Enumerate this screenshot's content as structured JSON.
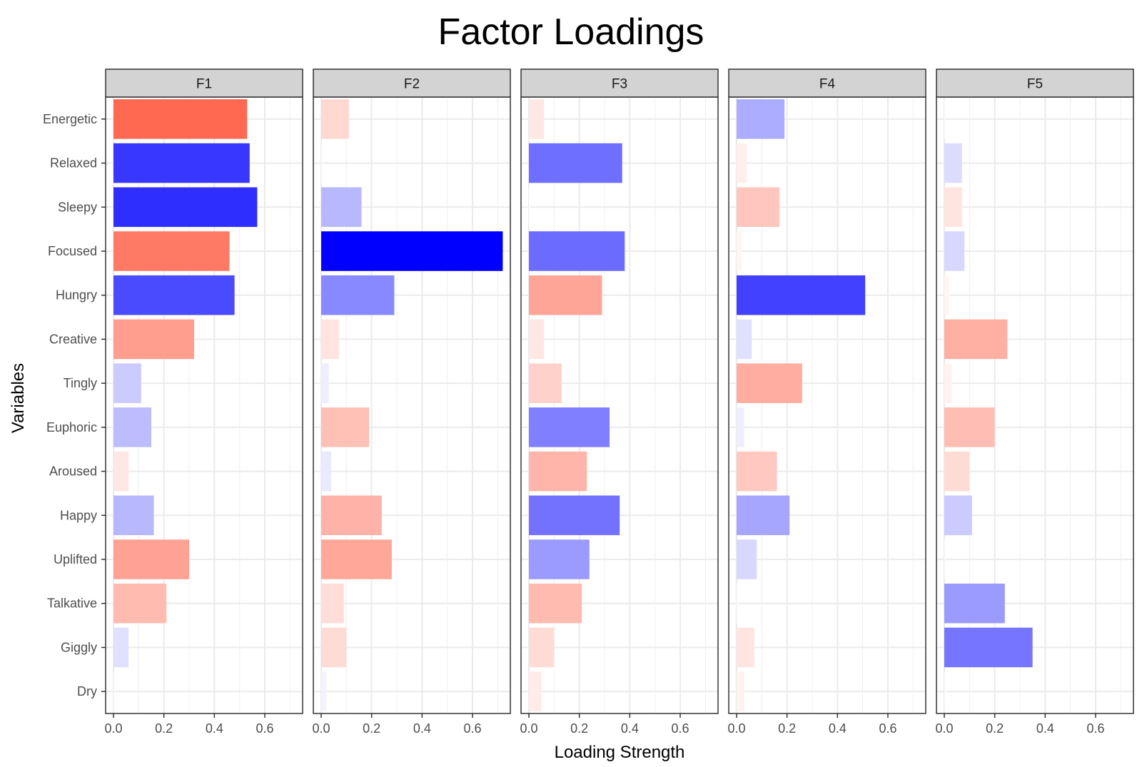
{
  "chart_data": {
    "type": "bar",
    "orientation": "horizontal",
    "title": "Factor Loadings",
    "xlabel": "Loading Strength",
    "ylabel": "Variables",
    "xlim": [
      0,
      0.75
    ],
    "x_ticks": [
      "0.0",
      "0.2",
      "0.4",
      "0.6"
    ],
    "grid": true,
    "legend": "none",
    "colors": {
      "positive": "#0000FF",
      "negative": "#FF3C1E",
      "strip_fill": "#D3D3D3",
      "grid": "#EBEBEB"
    },
    "categories": [
      "Energetic",
      "Relaxed",
      "Sleepy",
      "Focused",
      "Hungry",
      "Creative",
      "Tingly",
      "Euphoric",
      "Aroused",
      "Happy",
      "Uplifted",
      "Talkative",
      "Giggly",
      "Dry"
    ],
    "facets": [
      {
        "label": "F1",
        "values": [
          0.53,
          0.54,
          0.57,
          0.46,
          0.48,
          0.32,
          0.11,
          0.15,
          0.06,
          0.16,
          0.3,
          0.21,
          0.06,
          0.005
        ],
        "signs": [
          -1,
          1,
          1,
          -1,
          1,
          -1,
          1,
          1,
          -1,
          1,
          -1,
          -1,
          1,
          1
        ]
      },
      {
        "label": "F2",
        "values": [
          0.11,
          0.005,
          0.16,
          0.72,
          0.29,
          0.07,
          0.03,
          0.19,
          0.04,
          0.24,
          0.28,
          0.09,
          0.1,
          0.02
        ],
        "signs": [
          -1,
          1,
          1,
          1,
          1,
          -1,
          1,
          -1,
          1,
          -1,
          -1,
          -1,
          -1,
          1
        ]
      },
      {
        "label": "F3",
        "values": [
          0.06,
          0.37,
          0.005,
          0.38,
          0.29,
          0.06,
          0.13,
          0.32,
          0.23,
          0.36,
          0.24,
          0.21,
          0.1,
          0.05
        ],
        "signs": [
          -1,
          1,
          -1,
          1,
          -1,
          -1,
          -1,
          1,
          -1,
          1,
          1,
          -1,
          -1,
          -1
        ]
      },
      {
        "label": "F4",
        "values": [
          0.19,
          0.04,
          0.17,
          0.02,
          0.51,
          0.06,
          0.26,
          0.03,
          0.16,
          0.21,
          0.08,
          0.005,
          0.07,
          0.03
        ],
        "signs": [
          1,
          -1,
          -1,
          -1,
          1,
          1,
          -1,
          1,
          -1,
          1,
          1,
          -1,
          -1,
          -1
        ]
      },
      {
        "label": "F5",
        "values": [
          0.005,
          0.07,
          0.07,
          0.08,
          0.02,
          0.25,
          0.03,
          0.2,
          0.1,
          0.11,
          0.005,
          0.24,
          0.35,
          0.005
        ],
        "signs": [
          -1,
          1,
          -1,
          1,
          -1,
          -1,
          -1,
          -1,
          -1,
          1,
          1,
          1,
          1,
          1
        ]
      }
    ]
  }
}
